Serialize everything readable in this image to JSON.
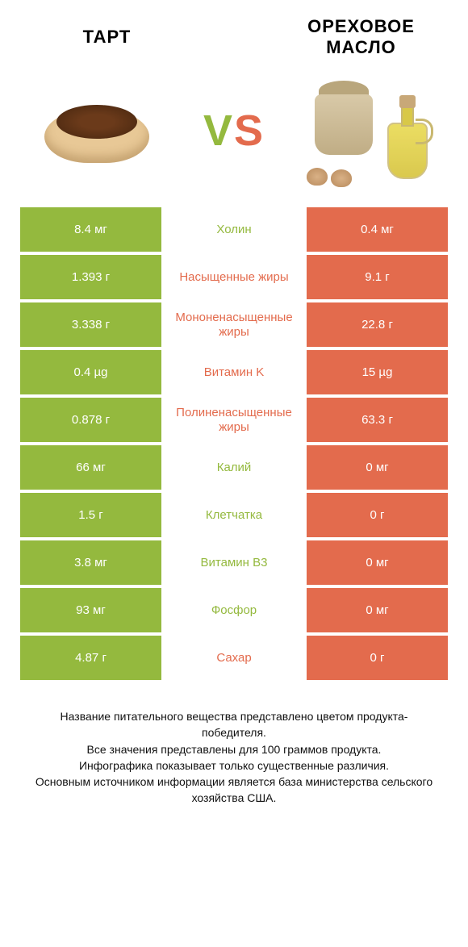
{
  "colors": {
    "green": "#94b93e",
    "orange": "#e36b4d",
    "text": "#111111"
  },
  "header": {
    "left_title": "ТАРТ",
    "right_title": "ОРЕХОВОЕ МАСЛО",
    "vs_label": "VS",
    "vs_color_left": "#94b93e",
    "vs_color_right": "#e36b4d"
  },
  "rows": [
    {
      "label": "Холин",
      "left": "8.4 мг",
      "right": "0.4 мг",
      "winner": "left"
    },
    {
      "label": "Насыщенные жиры",
      "left": "1.393 г",
      "right": "9.1 г",
      "winner": "right"
    },
    {
      "label": "Мононенасыщенные жиры",
      "left": "3.338 г",
      "right": "22.8 г",
      "winner": "right"
    },
    {
      "label": "Витамин K",
      "left": "0.4 µg",
      "right": "15 µg",
      "winner": "right"
    },
    {
      "label": "Полиненасыщенные жиры",
      "left": "0.878 г",
      "right": "63.3 г",
      "winner": "right"
    },
    {
      "label": "Калий",
      "left": "66 мг",
      "right": "0 мг",
      "winner": "left"
    },
    {
      "label": "Клетчатка",
      "left": "1.5 г",
      "right": "0 г",
      "winner": "left"
    },
    {
      "label": "Витамин B3",
      "left": "3.8 мг",
      "right": "0 мг",
      "winner": "left"
    },
    {
      "label": "Фосфор",
      "left": "93 мг",
      "right": "0 мг",
      "winner": "left"
    },
    {
      "label": "Сахар",
      "left": "4.87 г",
      "right": "0 г",
      "winner": "right"
    }
  ],
  "footnote": {
    "line1": "Название питательного вещества представлено цветом продукта-победителя.",
    "line2": "Все значения представлены для 100 граммов продукта.",
    "line3": "Инфографика показывает только существенные различия.",
    "line4": "Основным источником информации является база министерства сельского хозяйства США."
  }
}
